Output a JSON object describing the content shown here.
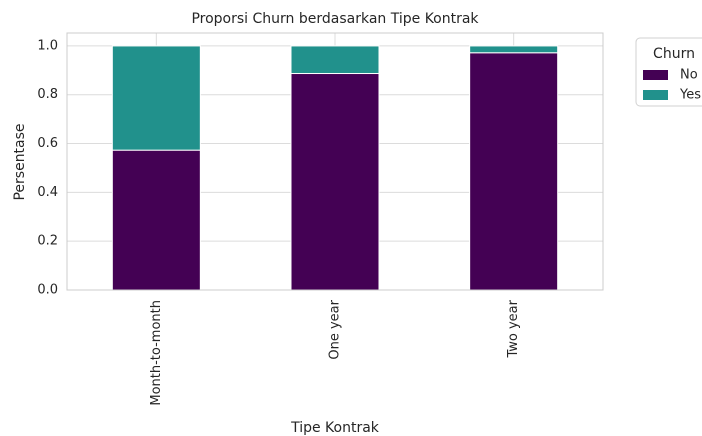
{
  "chart_data": {
    "type": "stacked_bar",
    "title": "Proporsi Churn berdasarkan Tipe Kontrak",
    "x_label": "Tipe Kontrak",
    "y_label": "Persentase",
    "categories": [
      "Month-to-month",
      "One year",
      "Two year"
    ],
    "series": [
      {
        "name": "No",
        "color": "#440154",
        "values": [
          0.573,
          0.887,
          0.972
        ]
      },
      {
        "name": "Yes",
        "color": "#21918c",
        "values": [
          0.427,
          0.113,
          0.028
        ]
      }
    ],
    "ylim": [
      0,
      1.053
    ],
    "yticks": [
      {
        "value": 0,
        "label": "0.0"
      },
      0.2,
      0.4,
      0.6,
      0.8,
      {
        "value": 1,
        "label": "1.0"
      }
    ],
    "grid": true,
    "legend": {
      "title": "Churn",
      "position": "outside upper right"
    }
  }
}
